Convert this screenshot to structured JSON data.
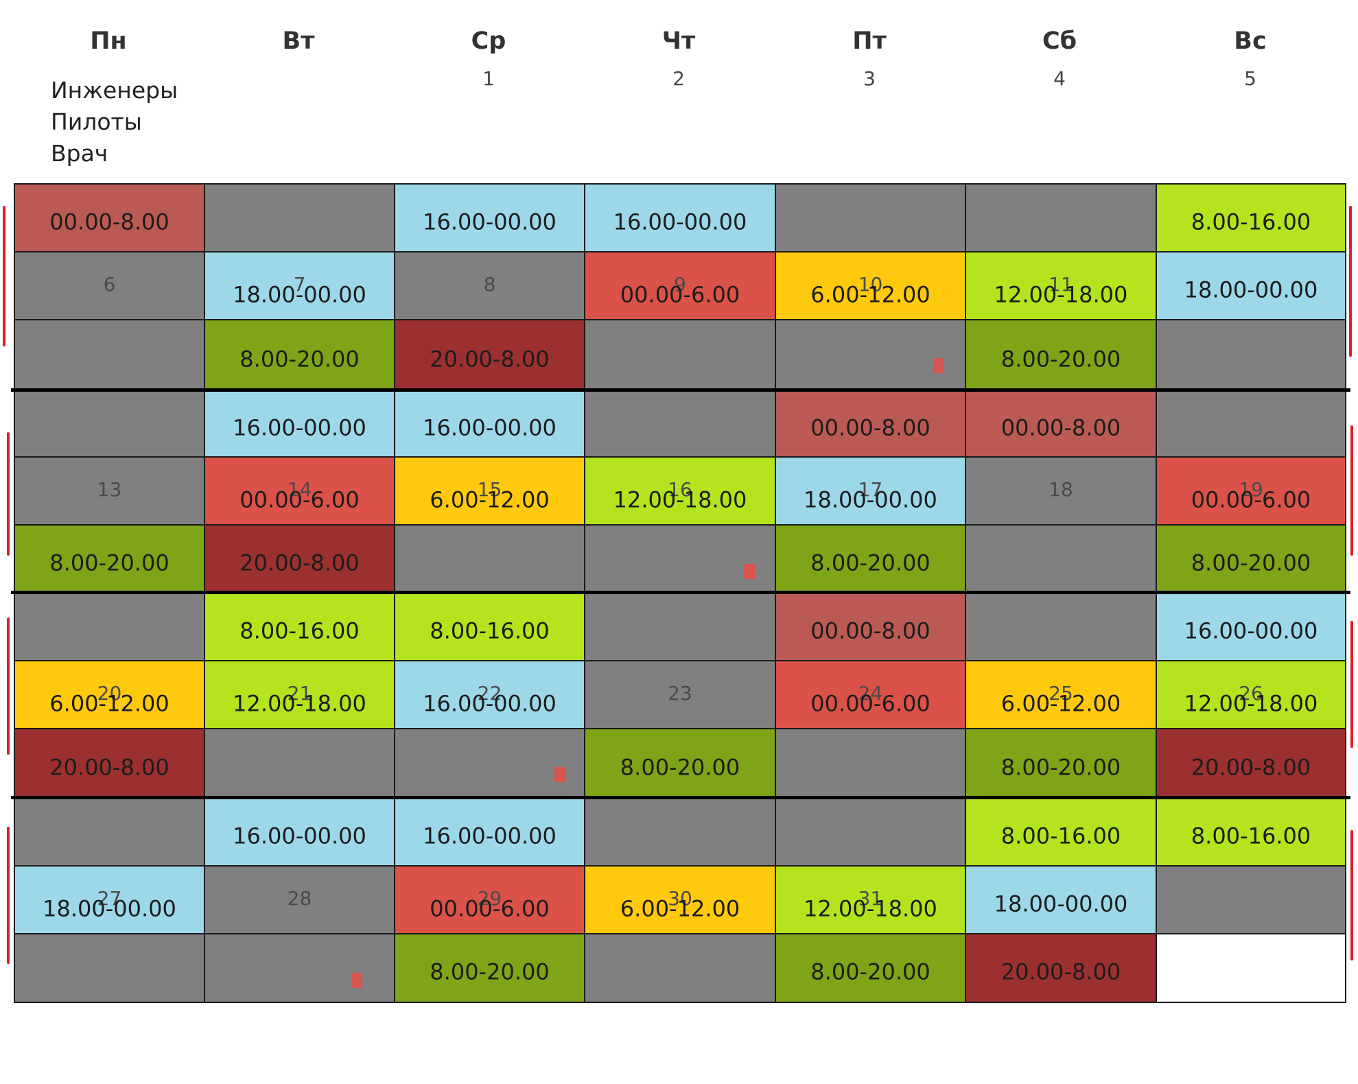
{
  "colors": {
    "gray": "#808080",
    "light_blue": "#9cd8e8",
    "light_green": "#b3e41e",
    "olive": "#7ea418",
    "dark_red": "#9c3030",
    "red": "#db5249",
    "brick": "#bb5a55",
    "yellow": "#ffc90e",
    "white": "#ffffff"
  },
  "days": [
    "Пн",
    "Вт",
    "Ср",
    "Чт",
    "Пт",
    "Сб",
    "Вс"
  ],
  "first_dates": [
    "",
    "",
    "1",
    "2",
    "3",
    "4",
    "5"
  ],
  "legend": [
    "Инженеры",
    "Пилоты",
    "Врач"
  ],
  "rows": [
    [
      {
        "c": "brick",
        "t": "00.00-8.00"
      },
      {
        "c": "gray",
        "t": ""
      },
      {
        "c": "light_blue",
        "t": "16.00-00.00"
      },
      {
        "c": "light_blue",
        "t": "16.00-00.00"
      },
      {
        "c": "gray",
        "t": ""
      },
      {
        "c": "gray",
        "t": ""
      },
      {
        "c": "light_green",
        "t": "8.00-16.00"
      }
    ],
    [
      {
        "c": "gray",
        "n": "6",
        "t": ""
      },
      {
        "c": "light_blue",
        "n": "7",
        "t": "18.00-00.00"
      },
      {
        "c": "gray",
        "n": "8",
        "t": ""
      },
      {
        "c": "red",
        "n": "9",
        "t": "00.00-6.00"
      },
      {
        "c": "yellow",
        "n": "10",
        "t": "6.00-12.00"
      },
      {
        "c": "light_green",
        "n": "11",
        "t": "12.00-18.00"
      },
      {
        "c": "light_blue",
        "t": "18.00-00.00"
      }
    ],
    [
      {
        "c": "gray",
        "t": ""
      },
      {
        "c": "olive",
        "t": "8.00-20.00"
      },
      {
        "c": "dark_red",
        "t": "20.00-8.00"
      },
      {
        "c": "gray",
        "t": ""
      },
      {
        "c": "gray",
        "t": ""
      },
      {
        "c": "olive",
        "t": "8.00-20.00"
      },
      {
        "c": "gray",
        "t": ""
      }
    ],
    [
      {
        "c": "gray",
        "t": ""
      },
      {
        "c": "light_blue",
        "t": "16.00-00.00"
      },
      {
        "c": "light_blue",
        "t": "16.00-00.00"
      },
      {
        "c": "gray",
        "t": ""
      },
      {
        "c": "brick",
        "t": "00.00-8.00"
      },
      {
        "c": "brick",
        "t": "00.00-8.00"
      },
      {
        "c": "gray",
        "t": ""
      }
    ],
    [
      {
        "c": "gray",
        "n": "13",
        "t": ""
      },
      {
        "c": "red",
        "n": "14",
        "t": "00.00-6.00"
      },
      {
        "c": "yellow",
        "n": "15",
        "t": "6.00-12.00"
      },
      {
        "c": "light_green",
        "n": "16",
        "t": "12.00-18.00"
      },
      {
        "c": "light_blue",
        "n": "17",
        "t": "18.00-00.00"
      },
      {
        "c": "gray",
        "n": "18",
        "t": ""
      },
      {
        "c": "red",
        "n": "19",
        "t": "00.00-6.00"
      }
    ],
    [
      {
        "c": "olive",
        "t": "8.00-20.00"
      },
      {
        "c": "dark_red",
        "t": "20.00-8.00"
      },
      {
        "c": "gray",
        "t": ""
      },
      {
        "c": "gray",
        "t": ""
      },
      {
        "c": "olive",
        "t": "8.00-20.00"
      },
      {
        "c": "gray",
        "t": ""
      },
      {
        "c": "olive",
        "t": "8.00-20.00"
      }
    ],
    [
      {
        "c": "gray",
        "t": ""
      },
      {
        "c": "light_green",
        "t": "8.00-16.00"
      },
      {
        "c": "light_green",
        "t": "8.00-16.00"
      },
      {
        "c": "gray",
        "t": ""
      },
      {
        "c": "brick",
        "t": "00.00-8.00"
      },
      {
        "c": "gray",
        "t": ""
      },
      {
        "c": "light_blue",
        "t": "16.00-00.00"
      }
    ],
    [
      {
        "c": "yellow",
        "n": "20",
        "t": "6.00-12.00"
      },
      {
        "c": "light_green",
        "n": "21",
        "t": "12.00-18.00"
      },
      {
        "c": "light_blue",
        "n": "22",
        "t": "16.00-00.00"
      },
      {
        "c": "gray",
        "n": "23",
        "t": ""
      },
      {
        "c": "red",
        "n": "24",
        "t": "00.00-6.00"
      },
      {
        "c": "yellow",
        "n": "25",
        "t": "6.00-12.00"
      },
      {
        "c": "light_green",
        "n": "26",
        "t": "12.00-18.00"
      }
    ],
    [
      {
        "c": "dark_red",
        "t": "20.00-8.00"
      },
      {
        "c": "gray",
        "t": ""
      },
      {
        "c": "gray",
        "t": ""
      },
      {
        "c": "olive",
        "t": "8.00-20.00"
      },
      {
        "c": "gray",
        "t": ""
      },
      {
        "c": "olive",
        "t": "8.00-20.00"
      },
      {
        "c": "dark_red",
        "t": "20.00-8.00"
      }
    ],
    [
      {
        "c": "gray",
        "t": ""
      },
      {
        "c": "light_blue",
        "t": "16.00-00.00"
      },
      {
        "c": "light_blue",
        "t": "16.00-00.00"
      },
      {
        "c": "gray",
        "t": ""
      },
      {
        "c": "gray",
        "t": ""
      },
      {
        "c": "light_green",
        "t": "8.00-16.00"
      },
      {
        "c": "light_green",
        "t": "8.00-16.00"
      }
    ],
    [
      {
        "c": "light_blue",
        "n": "27",
        "t": "18.00-00.00"
      },
      {
        "c": "gray",
        "n": "28",
        "t": ""
      },
      {
        "c": "red",
        "n": "29",
        "t": "00.00-6.00"
      },
      {
        "c": "yellow",
        "n": "30",
        "t": "6.00-12.00"
      },
      {
        "c": "light_green",
        "n": "31",
        "t": "12.00-18.00"
      },
      {
        "c": "light_blue",
        "t": "18.00-00.00"
      },
      {
        "c": "gray",
        "t": ""
      }
    ],
    [
      {
        "c": "gray",
        "t": ""
      },
      {
        "c": "gray",
        "t": ""
      },
      {
        "c": "olive",
        "t": "8.00-20.00"
      },
      {
        "c": "gray",
        "t": ""
      },
      {
        "c": "olive",
        "t": "8.00-20.00"
      },
      {
        "c": "dark_red",
        "t": "20.00-8.00"
      },
      {
        "c": "white",
        "t": ""
      }
    ]
  ]
}
